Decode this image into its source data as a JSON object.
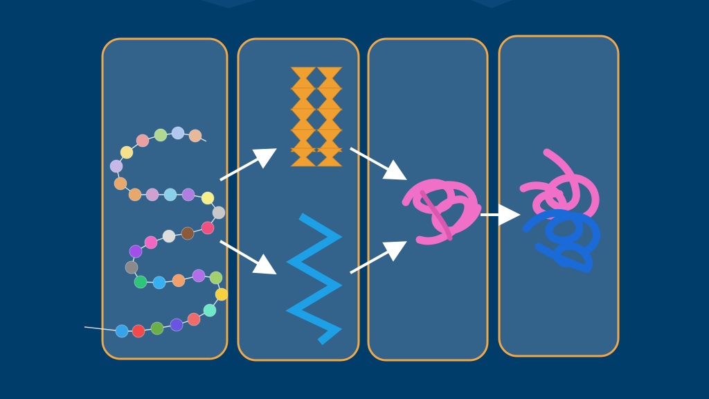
{
  "diagram": {
    "subject": "protein-structure-levels",
    "stages": [
      {
        "name": "primary-structure",
        "shape": "bead-chain"
      },
      {
        "name": "secondary-structure",
        "shape": "beta-sheet-and-alpha-helix"
      },
      {
        "name": "tertiary-structure",
        "shape": "folded-chain"
      },
      {
        "name": "quaternary-structure",
        "shape": "two-folded-chains"
      }
    ],
    "arrows": [
      {
        "from": "primary-structure",
        "to": "beta-sheet"
      },
      {
        "from": "primary-structure",
        "to": "alpha-helix"
      },
      {
        "from": "beta-sheet",
        "to": "tertiary-structure"
      },
      {
        "from": "alpha-helix",
        "to": "tertiary-structure"
      },
      {
        "from": "tertiary-structure",
        "to": "quaternary-structure"
      }
    ],
    "bead_colors": [
      "#35a4e8",
      "#f24a4a",
      "#6bb046",
      "#6a55e0",
      "#f26b6b",
      "#6fe8c8",
      "#f7d23e",
      "#a3d06e",
      "#b06ee8",
      "#f2a06b",
      "#35b0f2",
      "#2ec47a",
      "#8a8a8a",
      "#a050e8",
      "#f266c4",
      "#dddddd",
      "#8a5a3a",
      "#f05080",
      "#c8c8c8",
      "#f7f08a",
      "#b07ee0",
      "#8ad0e8",
      "#d0a0d0",
      "#e8a86b",
      "#e8a86b",
      "#c8b8e8",
      "#f7e08a",
      "#e8a0a0",
      "#b0d890",
      "#b0c8f0",
      "#e8b898"
    ],
    "colors": {
      "background": "#003d6b",
      "panel_fill": "#33638a",
      "panel_border": "#f0a848",
      "arrow": "#ffffff",
      "beta_sheet": "#f0a030",
      "alpha_helix": "#1ea0e6",
      "tertiary_chain": "#f070c8",
      "quaternary_chain_2": "#1a6ad8"
    }
  }
}
